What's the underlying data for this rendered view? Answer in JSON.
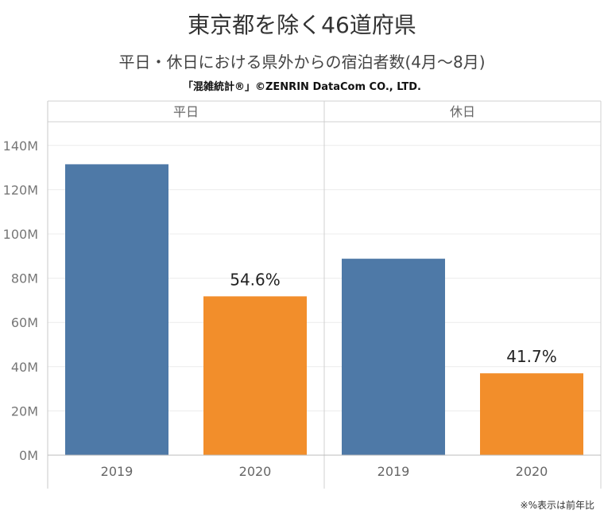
{
  "header": {
    "title": "東京都を除く46道府県",
    "subtitle": "平日・休日における県外からの宿泊者数(4月～8月)",
    "credit": "「混雑統計®」©ZENRIN DataCom CO., LTD."
  },
  "footnote": "※%表示は前年比",
  "colors": {
    "2019": "#4e79a7",
    "2020": "#f28e2b"
  },
  "chart_data": {
    "type": "bar",
    "ylim": [
      0,
      150000000
    ],
    "yticks": [
      0,
      20000000,
      40000000,
      60000000,
      80000000,
      100000000,
      120000000,
      140000000
    ],
    "ytick_labels": [
      "0M",
      "20M",
      "40M",
      "60M",
      "80M",
      "100M",
      "120M",
      "140M"
    ],
    "grid": true,
    "panels": [
      {
        "label": "平日",
        "categories": [
          "2019",
          "2020"
        ],
        "values": [
          131500000,
          71800000
        ],
        "data_labels": [
          "",
          "54.6%"
        ]
      },
      {
        "label": "休日",
        "categories": [
          "2019",
          "2020"
        ],
        "values": [
          88800000,
          37000000
        ],
        "data_labels": [
          "",
          "41.7%"
        ]
      }
    ]
  }
}
